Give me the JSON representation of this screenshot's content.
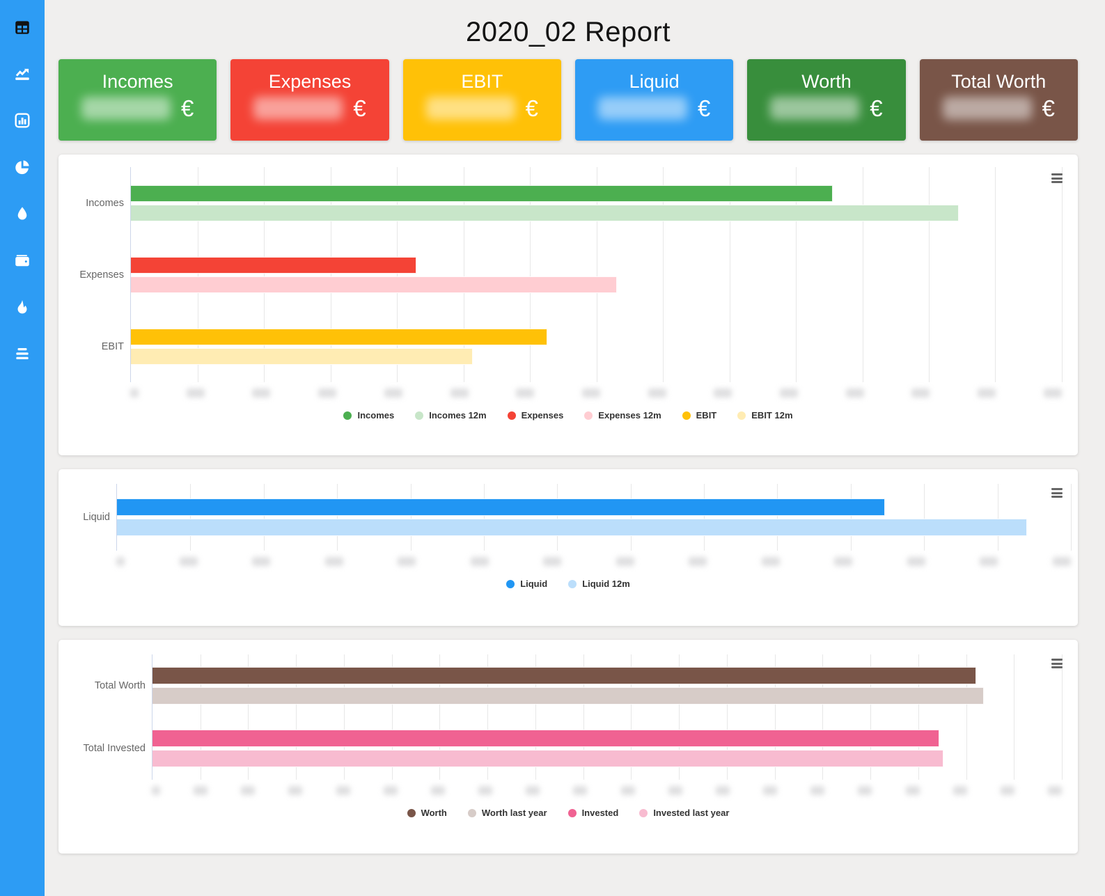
{
  "page": {
    "title": "2020_02 Report",
    "background": "#f0efee",
    "accent": "#2d9cf4"
  },
  "sidebar": {
    "background": "#2d9cf4",
    "items": [
      {
        "icon": "table-icon",
        "active": true
      },
      {
        "icon": "line-chart-icon",
        "active": false
      },
      {
        "icon": "bar-chart-icon",
        "active": false
      },
      {
        "icon": "pie-chart-icon",
        "active": false
      },
      {
        "icon": "droplet-icon",
        "active": false
      },
      {
        "icon": "wallet-icon",
        "active": false
      },
      {
        "icon": "flame-icon",
        "active": false
      },
      {
        "icon": "menu-lines-icon",
        "active": false
      }
    ]
  },
  "kpi_cards": [
    {
      "label": "Incomes",
      "currency": "€",
      "color": "#4caf50",
      "value_blurred": true
    },
    {
      "label": "Expenses",
      "currency": "€",
      "color": "#f44336",
      "value_blurred": true
    },
    {
      "label": "EBIT",
      "currency": "€",
      "color": "#ffc107",
      "value_blurred": true
    },
    {
      "label": "Liquid",
      "currency": "€",
      "color": "#2e9cf4",
      "value_blurred": true
    },
    {
      "label": "Worth",
      "currency": "€",
      "color": "#388e3c",
      "value_blurred": true
    },
    {
      "label": "Total Worth",
      "currency": "€",
      "color": "#795548",
      "value_blurred": true
    }
  ],
  "chart_data": [
    {
      "id": "incomes-expenses-ebit",
      "type": "bar",
      "orientation": "horizontal",
      "categories": [
        "Incomes",
        "Expenses",
        "EBIT"
      ],
      "series": [
        {
          "name": "Incomes",
          "category": "Incomes",
          "color": "#4caf50",
          "value_pct_of_axis": 75.4
        },
        {
          "name": "Incomes 12m",
          "category": "Incomes",
          "color": "#c8e6c9",
          "value_pct_of_axis": 88.9
        },
        {
          "name": "Expenses",
          "category": "Expenses",
          "color": "#f44336",
          "value_pct_of_axis": 30.7
        },
        {
          "name": "Expenses 12m",
          "category": "Expenses",
          "color": "#ffcdd2",
          "value_pct_of_axis": 52.2
        },
        {
          "name": "EBIT",
          "category": "EBIT",
          "color": "#ffc107",
          "value_pct_of_axis": 44.7
        },
        {
          "name": "EBIT 12m",
          "category": "EBIT",
          "color": "#ffecb3",
          "value_pct_of_axis": 36.7
        }
      ],
      "x_axis": {
        "tick_count": 15,
        "tick_labels_blurred": true
      },
      "grid": true,
      "legend_position": "bottom",
      "menu_icon": "hamburger-icon"
    },
    {
      "id": "liquid",
      "type": "bar",
      "orientation": "horizontal",
      "categories": [
        "Liquid"
      ],
      "series": [
        {
          "name": "Liquid",
          "category": "Liquid",
          "color": "#2196f3",
          "value_pct_of_axis": 80.5
        },
        {
          "name": "Liquid 12m",
          "category": "Liquid",
          "color": "#bbdefb",
          "value_pct_of_axis": 95.4
        }
      ],
      "x_axis": {
        "tick_count": 14,
        "tick_labels_blurred": true
      },
      "grid": true,
      "legend_position": "bottom",
      "menu_icon": "hamburger-icon"
    },
    {
      "id": "worth-invested",
      "type": "bar",
      "orientation": "horizontal",
      "categories": [
        "Total Worth",
        "Total Invested"
      ],
      "series": [
        {
          "name": "Worth",
          "category": "Total Worth",
          "color": "#795548",
          "value_pct_of_axis": 90.6
        },
        {
          "name": "Worth last year",
          "category": "Total Worth",
          "color": "#d7ccc8",
          "value_pct_of_axis": 91.4
        },
        {
          "name": "Invested",
          "category": "Total Invested",
          "color": "#f06292",
          "value_pct_of_axis": 86.5
        },
        {
          "name": "Invested last year",
          "category": "Total Invested",
          "color": "#f8bbd0",
          "value_pct_of_axis": 87.0
        }
      ],
      "x_axis": {
        "tick_count": 20,
        "tick_labels_blurred": true
      },
      "grid": true,
      "legend_position": "bottom",
      "menu_icon": "hamburger-icon"
    }
  ]
}
